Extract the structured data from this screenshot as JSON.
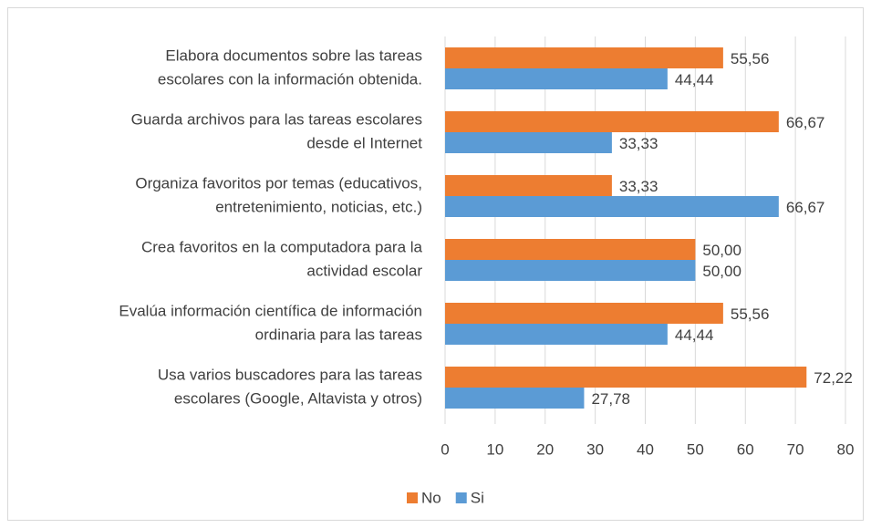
{
  "chart_data": {
    "type": "hbar",
    "categories": [
      [
        "Elabora documentos sobre las tareas",
        "escolares con la información obtenida."
      ],
      [
        "Guarda archivos para las tareas escolares",
        "desde el Internet"
      ],
      [
        "Organiza favoritos por temas (educativos,",
        "entretenimiento, noticias, etc.)"
      ],
      [
        "Crea favoritos en la computadora para la",
        "actividad escolar"
      ],
      [
        "Evalúa información científica de información",
        "ordinaria para las tareas"
      ],
      [
        "Usa varios buscadores para las tareas",
        "escolares (Google, Altavista y otros)"
      ]
    ],
    "series": [
      {
        "name": "No",
        "color": "#ed7d31",
        "values": [
          55.56,
          66.67,
          33.33,
          50.0,
          55.56,
          72.22
        ],
        "value_labels": [
          "55,56",
          "66,67",
          "33,33",
          "50,00",
          "55,56",
          "72,22"
        ]
      },
      {
        "name": "Si",
        "color": "#5b9bd5",
        "values": [
          44.44,
          33.33,
          66.67,
          50.0,
          44.44,
          27.78
        ],
        "value_labels": [
          "44,44",
          "33,33",
          "66,67",
          "50,00",
          "44,44",
          "27,78"
        ]
      }
    ],
    "xlim": [
      0,
      80
    ],
    "xticks": [
      0,
      10,
      20,
      30,
      40,
      50,
      60,
      70,
      80
    ],
    "grid": true,
    "legend": "bottom"
  }
}
